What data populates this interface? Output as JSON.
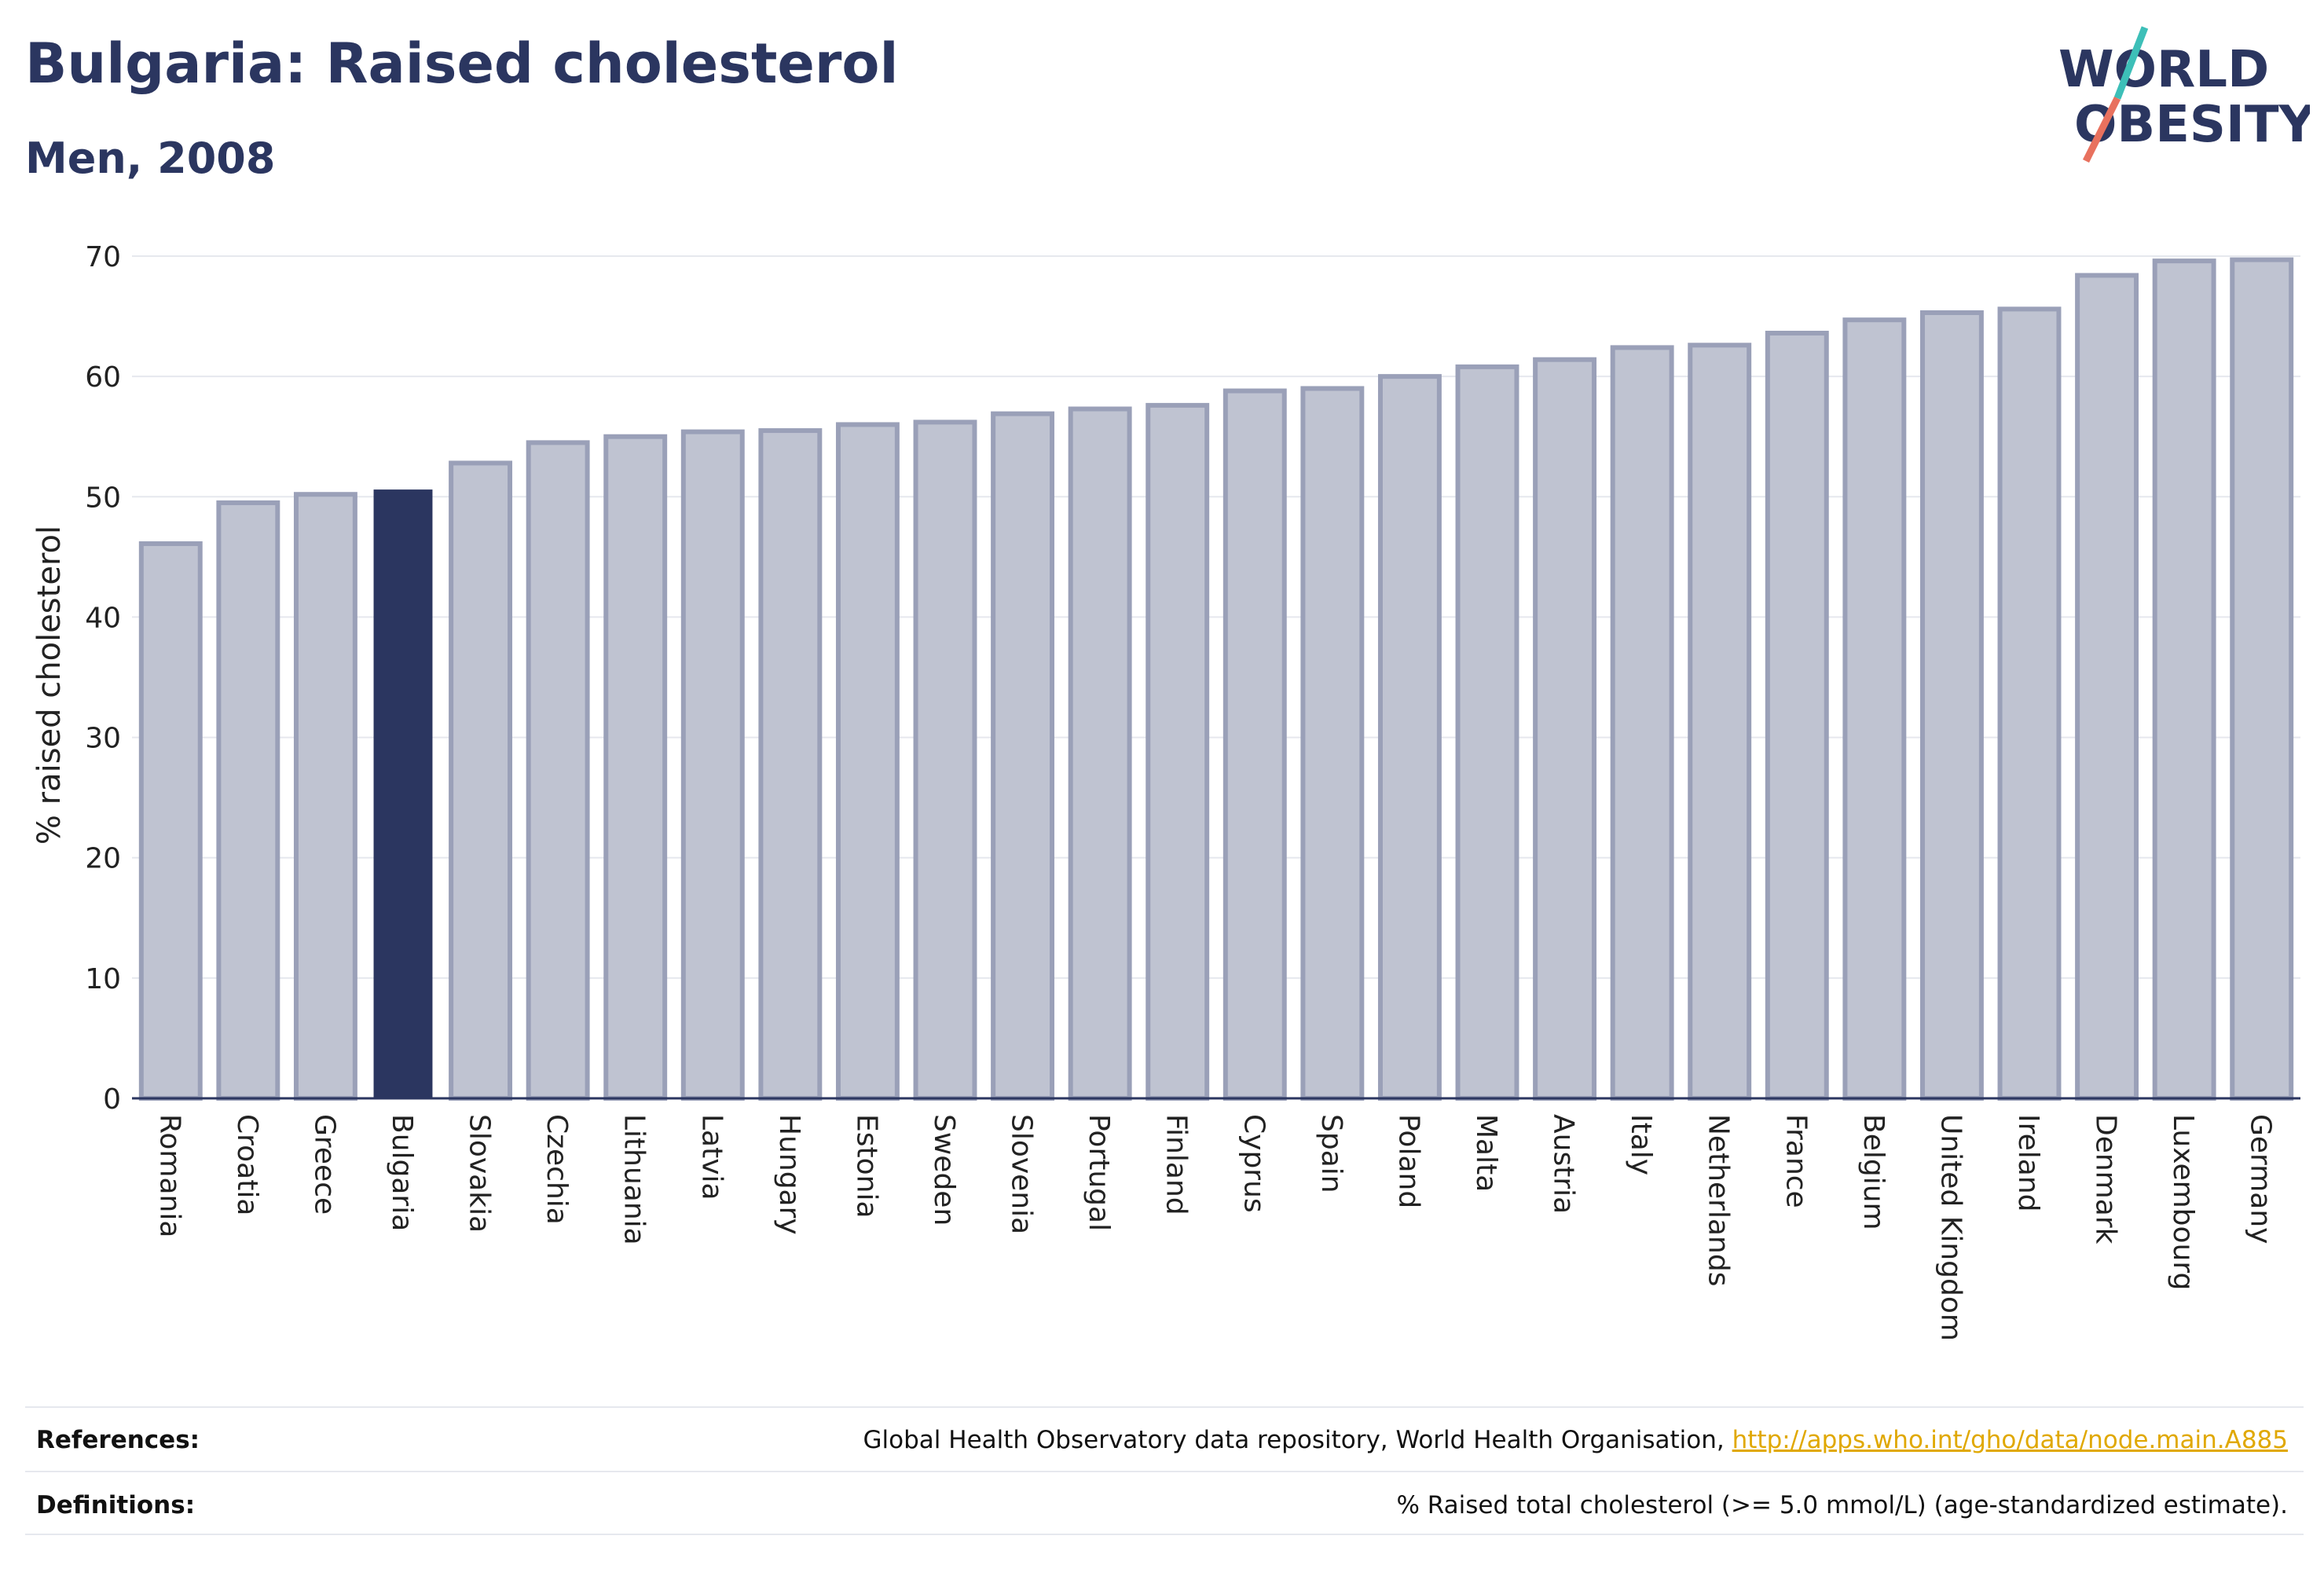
{
  "title": "Bulgaria: Raised cholesterol",
  "subtitle": "Men, 2008",
  "logo": {
    "line1": "WORLD",
    "line2": "OBESITY",
    "slash_colors": [
      "#3dbfb8",
      "#e8715e"
    ],
    "text_color": "#2b3660"
  },
  "colors": {
    "highlight": "#2b3660",
    "bar_fill": "#bfc3d1",
    "bar_stroke": "#9aa0b8",
    "axis": "#2b3660",
    "grid": "#e6e8ee"
  },
  "chart_data": {
    "type": "bar",
    "ylabel": "% raised cholesterol",
    "ylim": [
      0,
      70
    ],
    "yticks": [
      0,
      10,
      20,
      30,
      40,
      50,
      60,
      70
    ],
    "highlight": "Bulgaria",
    "categories": [
      "Romania",
      "Croatia",
      "Greece",
      "Bulgaria",
      "Slovakia",
      "Czechia",
      "Lithuania",
      "Latvia",
      "Hungary",
      "Estonia",
      "Sweden",
      "Slovenia",
      "Portugal",
      "Finland",
      "Cyprus",
      "Spain",
      "Poland",
      "Malta",
      "Austria",
      "Italy",
      "Netherlands",
      "France",
      "Belgium",
      "United Kingdom",
      "Ireland",
      "Denmark",
      "Luxembourg",
      "Germany"
    ],
    "values": [
      46.1,
      49.5,
      50.2,
      50.6,
      52.8,
      54.5,
      55.0,
      55.4,
      55.5,
      56.0,
      56.2,
      56.9,
      57.3,
      57.6,
      58.8,
      59.0,
      60.0,
      60.8,
      61.4,
      62.4,
      62.6,
      63.6,
      64.7,
      65.3,
      65.6,
      68.4,
      69.6,
      69.7
    ]
  },
  "footer": {
    "references_label": "References:",
    "references_text": "Global Health Observatory data repository, World Health Organisation, ",
    "references_link": "http://apps.who.int/gho/data/node.main.A885",
    "definitions_label": "Definitions:",
    "definitions_text": "% Raised total cholesterol (>= 5.0 mmol/L) (age-standardized estimate)."
  }
}
